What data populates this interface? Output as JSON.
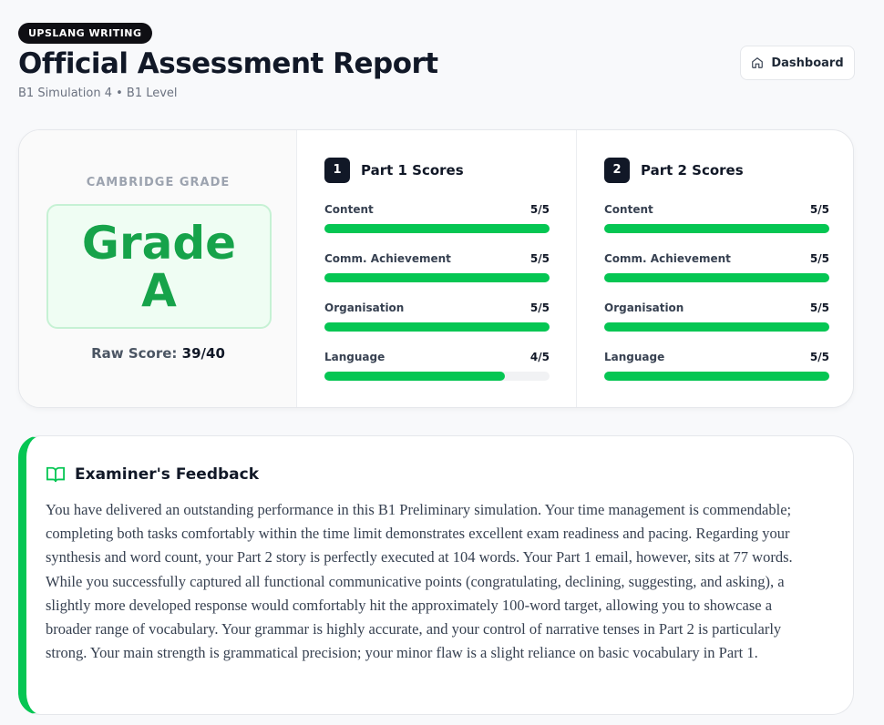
{
  "header": {
    "badge": "UPSLANG WRITING",
    "title": "Official Assessment Report",
    "subtitle": "B1 Simulation 4 • B1 Level",
    "button": "Dashboard"
  },
  "grade": {
    "heading": "CAMBRIDGE GRADE",
    "grade": "Grade A",
    "raw_label": "Raw Score:",
    "raw_value": "39/40"
  },
  "parts": [
    {
      "number": "1",
      "title": "Part 1 Scores",
      "criteria": [
        {
          "label": "Content",
          "score": "5/5",
          "value": 5,
          "max": 5
        },
        {
          "label": "Comm. Achievement",
          "score": "5/5",
          "value": 5,
          "max": 5
        },
        {
          "label": "Organisation",
          "score": "5/5",
          "value": 5,
          "max": 5
        },
        {
          "label": "Language",
          "score": "4/5",
          "value": 4,
          "max": 5
        }
      ]
    },
    {
      "number": "2",
      "title": "Part 2 Scores",
      "criteria": [
        {
          "label": "Content",
          "score": "5/5",
          "value": 5,
          "max": 5
        },
        {
          "label": "Comm. Achievement",
          "score": "5/5",
          "value": 5,
          "max": 5
        },
        {
          "label": "Organisation",
          "score": "5/5",
          "value": 5,
          "max": 5
        },
        {
          "label": "Language",
          "score": "5/5",
          "value": 5,
          "max": 5
        }
      ]
    }
  ],
  "feedback": {
    "title": "Examiner's Feedback",
    "text": "You have delivered an outstanding performance in this B1 Preliminary simulation. Your time management is commendable; completing both tasks comfortably within the time limit demonstrates excellent exam readiness and pacing. Regarding your synthesis and word count, your Part 2 story is perfectly executed at 104 words. Your Part 1 email, however, sits at 77 words. While you successfully captured all functional communicative points (congratulating, declining, suggesting, and asking), a slightly more developed response would comfortably hit the approximately 100-word target, allowing you to showcase a broader range of vocabulary. Your grammar is highly accurate, and your control of narrative tenses in Part 2 is particularly strong. Your main strength is grammatical precision; your minor flaw is a slight reliance on basic vocabulary in Part 1."
  }
}
